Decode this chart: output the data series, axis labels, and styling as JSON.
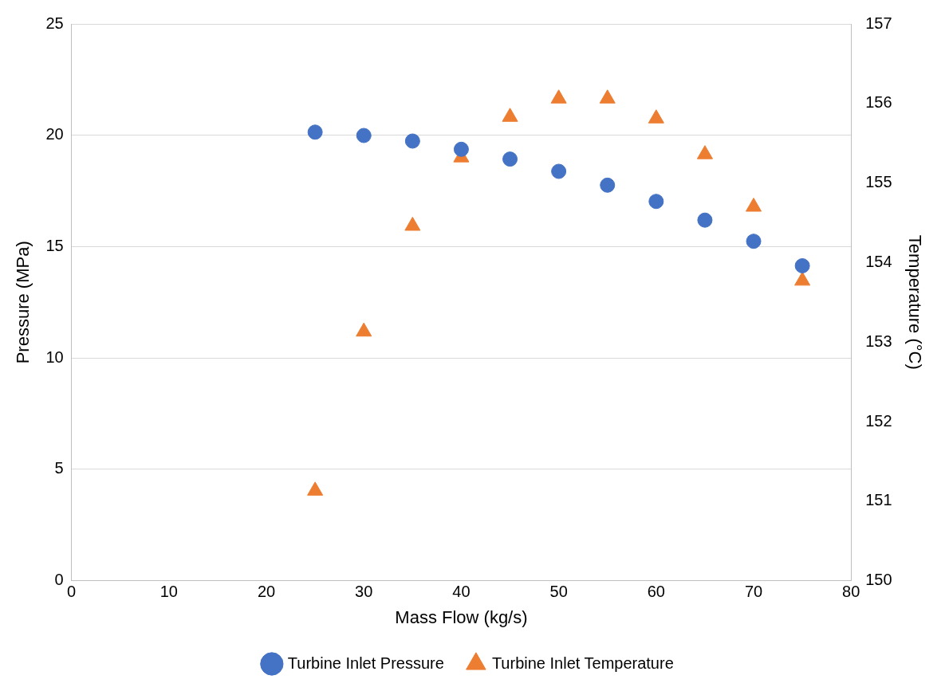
{
  "chart_data": {
    "type": "scatter",
    "xlabel": "Mass Flow (kg/s)",
    "ylabel": "Pressure (MPa)",
    "y2label": "Temperature (°C)",
    "x": [
      25,
      30,
      35,
      40,
      45,
      50,
      55,
      60,
      65,
      70,
      75
    ],
    "series": [
      {
        "name": "Turbine Inlet Pressure",
        "color": "#4472c4",
        "marker": "circle",
        "values": [
          20.14,
          19.99,
          19.74,
          19.37,
          18.93,
          18.38,
          17.76,
          17.03,
          16.19,
          15.24,
          14.14
        ]
      },
      {
        "name": "Turbine Inlet Temperature",
        "color": "#ed7d31",
        "marker": "triangle",
        "axis": "y2",
        "values": [
          151.13,
          153.13,
          154.46,
          155.32,
          155.83,
          156.06,
          156.06,
          155.81,
          155.36,
          154.7,
          153.77
        ]
      }
    ],
    "xlim": [
      0,
      80
    ],
    "xticks": [
      0,
      10,
      20,
      30,
      40,
      50,
      60,
      70,
      80
    ],
    "ylim": [
      0,
      25
    ],
    "yticks": [
      0,
      5,
      10,
      15,
      20,
      25
    ],
    "y2lim": [
      150,
      157
    ],
    "y2ticks": [
      150,
      151,
      152,
      153,
      154,
      155,
      156,
      157
    ],
    "grid": "y",
    "legend": "bottom"
  }
}
